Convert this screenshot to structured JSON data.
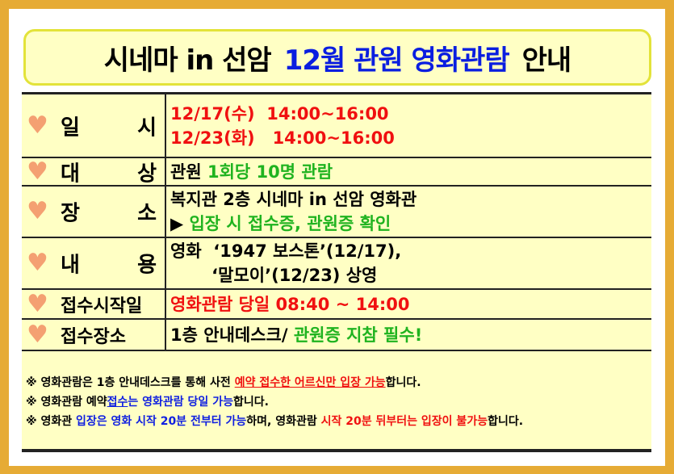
{
  "title": {
    "part1": "시네마 in 선암",
    "part2": "12월 관원 영화관람",
    "part3": "안내"
  },
  "rows": [
    {
      "label": [
        "일",
        "시"
      ],
      "lines": [
        [
          {
            "t": "12/17(수)  14:00~16:00",
            "c": "r"
          }
        ],
        [
          {
            "t": "12/23(화)   14:00~16:00",
            "c": "r"
          }
        ]
      ]
    },
    {
      "label": [
        "대",
        "상"
      ],
      "lines": [
        [
          {
            "t": "관원 ",
            "c": ""
          },
          {
            "t": "1회당 10명 관람",
            "c": "g"
          }
        ]
      ]
    },
    {
      "label": [
        "장",
        "소"
      ],
      "lines": [
        [
          {
            "t": "복지관 2층 시네마 in 선암 영화관",
            "c": ""
          }
        ],
        [
          {
            "t": "▶ ",
            "c": ""
          },
          {
            "t": "입장 시 접수증, 관원증 확인",
            "c": "g"
          }
        ]
      ]
    },
    {
      "label": [
        "내",
        "용"
      ],
      "lines": [
        [
          {
            "t": "영화  ‘1947 보스톤’(12/17),",
            "c": ""
          }
        ],
        [
          {
            "t": "       ‘말모이’(12/23) 상영",
            "c": ""
          }
        ]
      ]
    },
    {
      "label": [
        "접수시작일"
      ],
      "lines": [
        [
          {
            "t": "영화관람 당일 08:40 ~ 14:00",
            "c": "r"
          }
        ]
      ]
    },
    {
      "label": [
        "접수장소"
      ],
      "lines": [
        [
          {
            "t": "1층 안내데스크/ ",
            "c": ""
          },
          {
            "t": "관원증 지참 필수!",
            "c": "g"
          }
        ]
      ]
    }
  ],
  "notes": [
    [
      {
        "t": "※ 영화관람은 1층 안내데스크를 통해 사전 ",
        "c": ""
      },
      {
        "t": "예약 접수한 어르신만 입장 가능",
        "c": "r u"
      },
      {
        "t": "합니다.",
        "c": ""
      }
    ],
    [
      {
        "t": "※ 영화관람 예약",
        "c": ""
      },
      {
        "t": "접수",
        "c": "bl u"
      },
      {
        "t": "는 영화관람 당일 가능",
        "c": "bl"
      },
      {
        "t": "합니다.",
        "c": ""
      }
    ],
    [
      {
        "t": "※ 영화관 ",
        "c": ""
      },
      {
        "t": "입장은 영화 시작 20분 전부터 가능",
        "c": "bl"
      },
      {
        "t": "하며, 영화관람 ",
        "c": ""
      },
      {
        "t": "시작 20분 뒤부터는 입장이 불가능",
        "c": "r"
      },
      {
        "t": "합니다.",
        "c": ""
      }
    ]
  ],
  "colors": {
    "border": "#e6ab35",
    "panel": "#ffffc4",
    "red": "#f01010",
    "green": "#1fb31f",
    "blue": "#1020e0",
    "heart": "#f4a072"
  },
  "icons": {
    "row_marker": "heart-icon"
  }
}
